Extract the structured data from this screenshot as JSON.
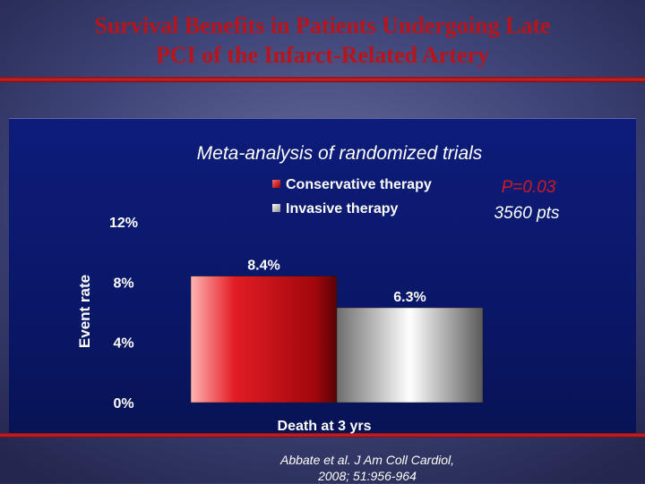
{
  "slide": {
    "title_line1": "Survival Benefits in Patients Undergoing Late",
    "title_line2": "PCI of the Infarct-Related Artery",
    "citation_line1": "Abbate et al. J Am Coll Cardiol,",
    "citation_line2": "2008; 51:956-964"
  },
  "chart_data": {
    "type": "bar",
    "title": "Meta-analysis of randomized trials",
    "xlabel": "Death at 3 yrs",
    "ylabel": "Event rate",
    "ylim": [
      0,
      12
    ],
    "yticks": [
      0,
      4,
      8,
      12
    ],
    "ytick_labels": [
      "0%",
      "4%",
      "8%",
      "12%"
    ],
    "legend_position": "top-center",
    "series": [
      {
        "name": "Conservative therapy",
        "values": [
          8.4
        ],
        "label": "8.4%",
        "color": "#d42024"
      },
      {
        "name": "Invasive therapy",
        "values": [
          6.3
        ],
        "label": "6.3%",
        "color": "#d8d8d8"
      }
    ],
    "categories": [
      "Death at 3 yrs"
    ],
    "annotations": {
      "p_value": "P=0.03",
      "sample_size": "3560 pts"
    },
    "colors": {
      "p_value_text": "#cc1a1f"
    }
  }
}
